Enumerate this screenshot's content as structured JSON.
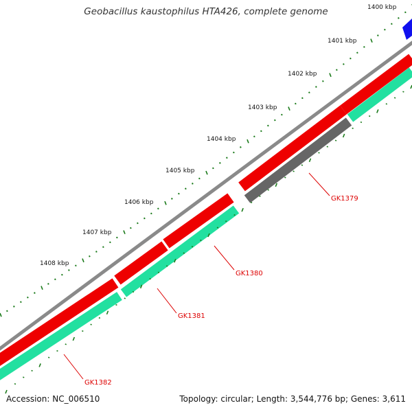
{
  "title": "Geobacillus kaustophilus HTA426, complete genome",
  "footer": {
    "accession": "Accession: NC_006510",
    "stats": "Topology: circular; Length: 3,544,776 bp; Genes: 3,611"
  },
  "ticks": [
    "1400 kbp",
    "1401 kbp",
    "1402 kbp",
    "1403 kbp",
    "1404 kbp",
    "1405 kbp",
    "1406 kbp",
    "1407 kbp",
    "1408 kbp"
  ],
  "genes": [
    {
      "name": "GK1379",
      "color": "#666666"
    },
    {
      "name": "GK1380",
      "color": "#ee0000"
    },
    {
      "name": "GK1381",
      "color": "#ee0000"
    },
    {
      "name": "GK1382",
      "color": "#ee0000"
    }
  ],
  "colors": {
    "backbone": "#8a8a8a",
    "forward_feature": "#ee0000",
    "reverse_feature": "#22e0a0",
    "pseudo_feature": "#666666",
    "blue_feature": "#1010ee",
    "tick": "#1a7a1a",
    "label": "#dd0000"
  }
}
